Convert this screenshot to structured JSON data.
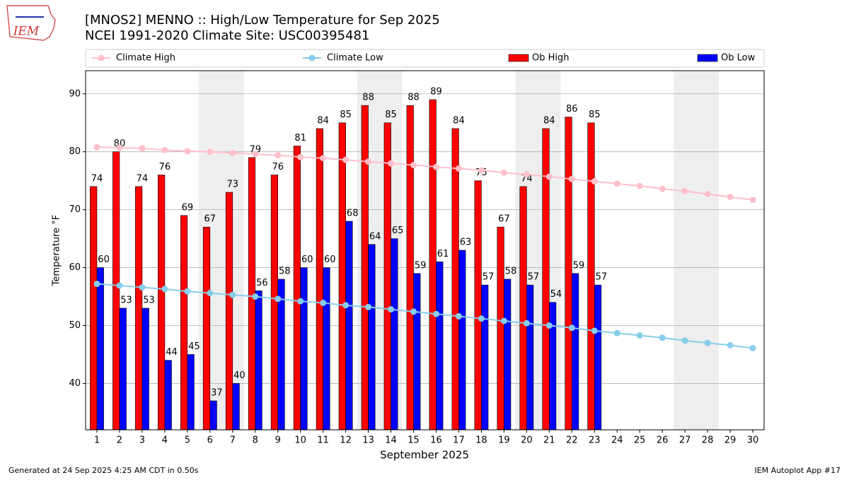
{
  "chart_data": {
    "type": "bar",
    "title": "[MNOS2] MENNO :: High/Low Temperature for Sep 2025",
    "subtitle": "NCEI 1991-2020 Climate Site: USC00395481",
    "xlabel": "September 2025",
    "ylabel": "Temperature °F",
    "logo_text": "IEM",
    "footer_left": "Generated at 24 Sep 2025 4:25 AM CDT in 0.50s",
    "footer_right": "IEM Autoplot App #17",
    "x": [
      1,
      2,
      3,
      4,
      5,
      6,
      7,
      8,
      9,
      10,
      11,
      12,
      13,
      14,
      15,
      16,
      17,
      18,
      19,
      20,
      21,
      22,
      23,
      24,
      25,
      26,
      27,
      28,
      29,
      30
    ],
    "xlim": [
      0.5,
      30.5
    ],
    "xticks": [
      1,
      2,
      3,
      4,
      5,
      6,
      7,
      8,
      9,
      10,
      11,
      12,
      13,
      14,
      15,
      16,
      17,
      18,
      19,
      20,
      21,
      22,
      23,
      24,
      25,
      26,
      27,
      28,
      29,
      30
    ],
    "ylim": [
      32,
      94
    ],
    "yticks": [
      40,
      50,
      60,
      70,
      80,
      90
    ],
    "grid": true,
    "series": [
      {
        "name": "Climate High",
        "type": "line",
        "color": "#ffc0cb",
        "values": [
          80.8,
          80.7,
          80.6,
          80.3,
          80.1,
          80.0,
          79.8,
          79.6,
          79.4,
          79.1,
          78.9,
          78.6,
          78.3,
          78.0,
          77.7,
          77.4,
          77.1,
          76.8,
          76.4,
          76.1,
          75.7,
          75.3,
          74.9,
          74.5,
          74.1,
          73.6,
          73.2,
          72.7,
          72.2,
          71.7
        ]
      },
      {
        "name": "Climate Low",
        "type": "line",
        "color": "#87ceeb",
        "values": [
          57.2,
          56.9,
          56.6,
          56.3,
          55.9,
          55.6,
          55.3,
          55.0,
          54.6,
          54.2,
          53.9,
          53.5,
          53.2,
          52.8,
          52.4,
          52.0,
          51.6,
          51.2,
          50.8,
          50.4,
          50.0,
          49.6,
          49.1,
          48.7,
          48.3,
          47.9,
          47.4,
          47.0,
          46.6,
          46.1
        ]
      },
      {
        "name": "Ob High",
        "type": "bar",
        "color": "#ff0000",
        "values": [
          74,
          80,
          74,
          76,
          69,
          67,
          73,
          79,
          76,
          81,
          84,
          85,
          88,
          85,
          88,
          89,
          84,
          75,
          67,
          74,
          84,
          86,
          85,
          null,
          null,
          null,
          null,
          null,
          null,
          null
        ]
      },
      {
        "name": "Ob Low",
        "type": "bar",
        "color": "#0000ff",
        "values": [
          60,
          53,
          53,
          44,
          45,
          37,
          40,
          56,
          58,
          60,
          60,
          68,
          64,
          65,
          59,
          61,
          63,
          57,
          58,
          57,
          54,
          59,
          57,
          null,
          null,
          null,
          null,
          null,
          null,
          null
        ]
      }
    ]
  }
}
